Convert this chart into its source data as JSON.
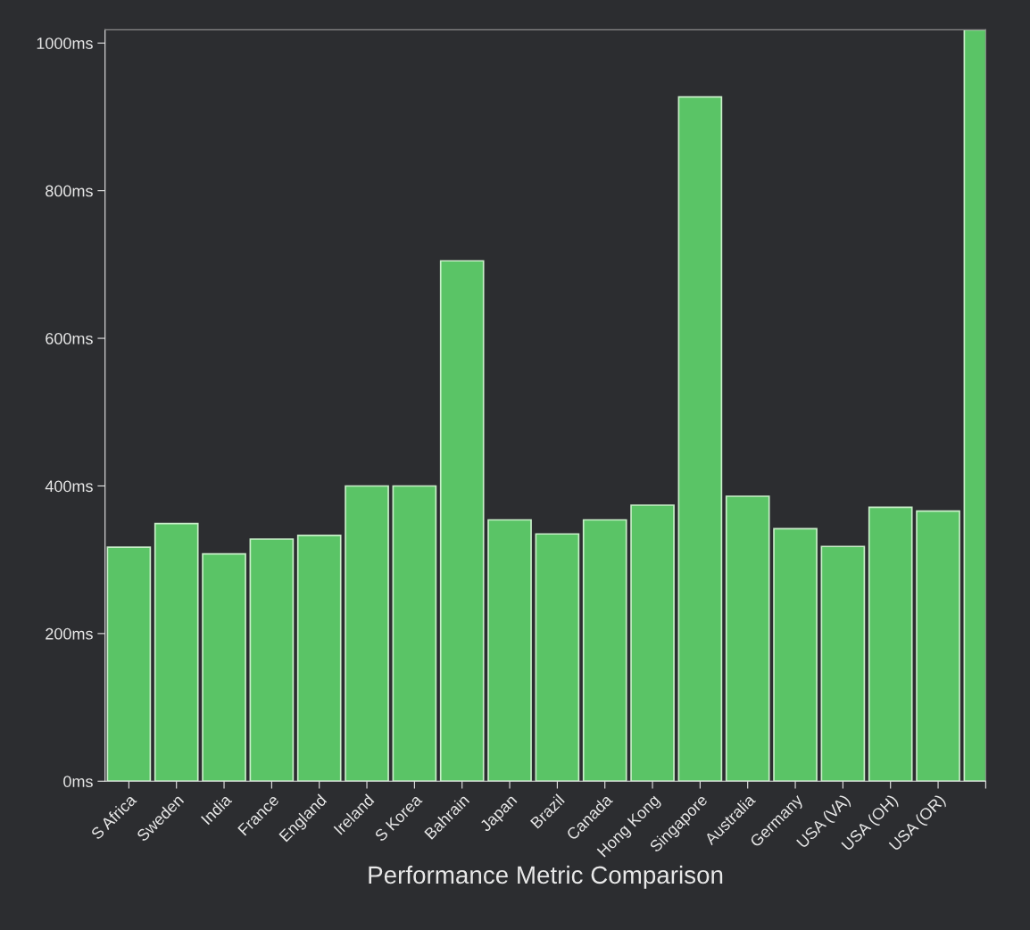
{
  "chart_data": {
    "type": "bar",
    "xlabel": "Performance Metric Comparison",
    "categories": [
      "S Africa",
      "Sweden",
      "India",
      "France",
      "England",
      "Ireland",
      "S Korea",
      "Bahrain",
      "Japan",
      "Brazil",
      "Canada",
      "Hong Kong",
      "Singapore",
      "Australia",
      "Germany",
      "USA (VA)",
      "USA (OH)",
      "USA (OR)",
      null
    ],
    "values": [
      317,
      349,
      308,
      328,
      333,
      400,
      400,
      705,
      354,
      335,
      354,
      374,
      927,
      386,
      342,
      318,
      371,
      366,
      1018
    ],
    "color": "#5ac466",
    "ylim": [
      0,
      1018
    ],
    "yticks": [
      {
        "value": 0,
        "label": "0ms"
      },
      {
        "value": 200,
        "label": "200ms"
      },
      {
        "value": 400,
        "label": "400ms"
      },
      {
        "value": 600,
        "label": "600ms"
      },
      {
        "value": 800,
        "label": "800ms"
      },
      {
        "value": 1000,
        "label": "1000ms"
      }
    ],
    "grid": false,
    "legend": false
  }
}
